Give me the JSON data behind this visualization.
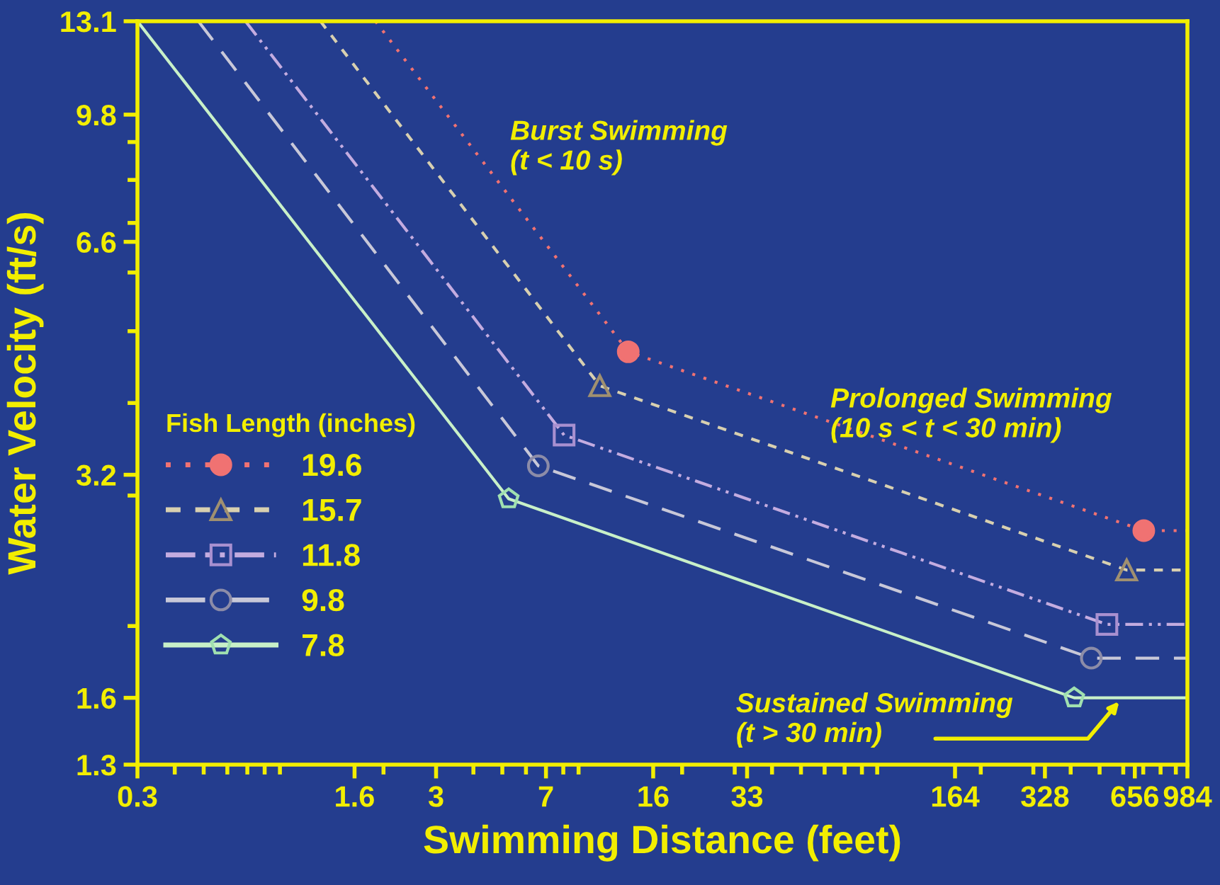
{
  "chart_data": {
    "type": "line",
    "xlabel": "Swimming Distance (feet)",
    "ylabel": "Water Velocity (ft/s)",
    "legend_title": "Fish Length (inches)",
    "log": "xy",
    "xlim": [
      0.3,
      984
    ],
    "ylim": [
      1.3,
      13.1
    ],
    "xticks": [
      0.3,
      1.6,
      3,
      7,
      16,
      33,
      164,
      328,
      656,
      984
    ],
    "yticks": [
      1.3,
      1.6,
      3.2,
      6.6,
      9.8,
      13.1
    ],
    "grid": false,
    "legend": "left",
    "series": [
      {
        "name": "19.6",
        "color": "#f07272",
        "marker": "circle",
        "line_style": "dotted",
        "x": [
          1.88,
          13.2,
          703,
          984
        ],
        "values": [
          13.1,
          4.69,
          2.69,
          2.69
        ]
      },
      {
        "name": "15.7",
        "color": "#d8d0b0",
        "marker": "triangle",
        "line_style": "dashed",
        "x": [
          1.23,
          10.6,
          616,
          984
        ],
        "values": [
          13.1,
          4.22,
          2.38,
          2.38
        ]
      },
      {
        "name": "11.8",
        "color": "#c4ace0",
        "marker": "square",
        "line_style": "dashdotdot",
        "x": [
          0.69,
          8.05,
          529,
          984
        ],
        "values": [
          13.1,
          3.62,
          2.01,
          2.01
        ]
      },
      {
        "name": "9.8",
        "color": "#c8c8d8",
        "marker": "circle",
        "line_style": "longdash",
        "x": [
          0.48,
          6.6,
          469,
          984
        ],
        "values": [
          13.1,
          3.29,
          1.81,
          1.81
        ]
      },
      {
        "name": "7.8",
        "color": "#c8f0c8",
        "line_style": "solid",
        "x": [
          0.3,
          5.25,
          411,
          984
        ],
        "values": [
          13.1,
          2.97,
          1.6,
          1.6
        ]
      }
    ],
    "annotations": [
      "Burst Swimming\n(t < 10 s)",
      "Prolonged Swimming\n(10 s < t < 30 min)",
      "Sustained Swimming\n(t > 30 min)"
    ]
  }
}
